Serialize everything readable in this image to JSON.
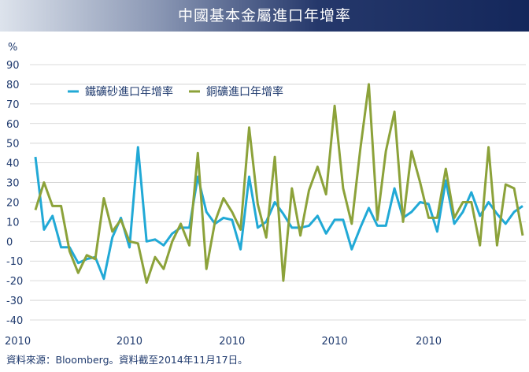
{
  "title": "中國基本金屬進口年增率",
  "source": "資料來源：Bloomberg。資料截至2014年11月17日。",
  "colors": {
    "iron": "#21a9d6",
    "copper": "#8ca23a",
    "grid": "#cfcfcf",
    "text": "#1f3a6e"
  },
  "chart_data": {
    "type": "line",
    "ylabel": "%",
    "ylim": [
      -40,
      90
    ],
    "yticks": [
      -40,
      -30,
      -20,
      -10,
      0,
      10,
      20,
      30,
      40,
      50,
      60,
      70,
      80,
      90
    ],
    "xtick_labels": [
      "2010",
      "2010",
      "2010",
      "2010",
      "2010"
    ],
    "xtick_index": [
      0,
      11,
      23,
      35,
      46
    ],
    "grid": "horizontal",
    "legend_position": "top-left",
    "series": [
      {
        "name": "鐵礦砂進口年增率",
        "color": "#21a9d6",
        "values": [
          43,
          6,
          13,
          -3,
          -3,
          -11,
          -9,
          -8,
          -19,
          2,
          12,
          -3,
          48,
          0,
          1,
          -2,
          4,
          7,
          7,
          33,
          15,
          9,
          12,
          11,
          -4,
          33,
          7,
          10,
          20,
          14,
          7,
          7,
          8,
          13,
          4,
          11,
          11,
          -4,
          7,
          17,
          8,
          8,
          27,
          12,
          15,
          20,
          19,
          5,
          31,
          9,
          15,
          25,
          13,
          20,
          14,
          9,
          15,
          18
        ]
      },
      {
        "name": "銅礦進口年增率",
        "color": "#8ca23a",
        "values": [
          16,
          30,
          18,
          18,
          -5,
          -16,
          -7,
          -9,
          22,
          5,
          11,
          0,
          -1,
          -21,
          -8,
          -14,
          0,
          9,
          -2,
          45,
          -14,
          10,
          22,
          15,
          6,
          58,
          19,
          2,
          43,
          -20,
          27,
          3,
          26,
          38,
          24,
          69,
          27,
          9,
          47,
          80,
          11,
          46,
          66,
          10,
          46,
          30,
          12,
          12,
          37,
          12,
          20,
          20,
          -2,
          48,
          -2,
          29,
          27,
          3
        ]
      }
    ]
  }
}
